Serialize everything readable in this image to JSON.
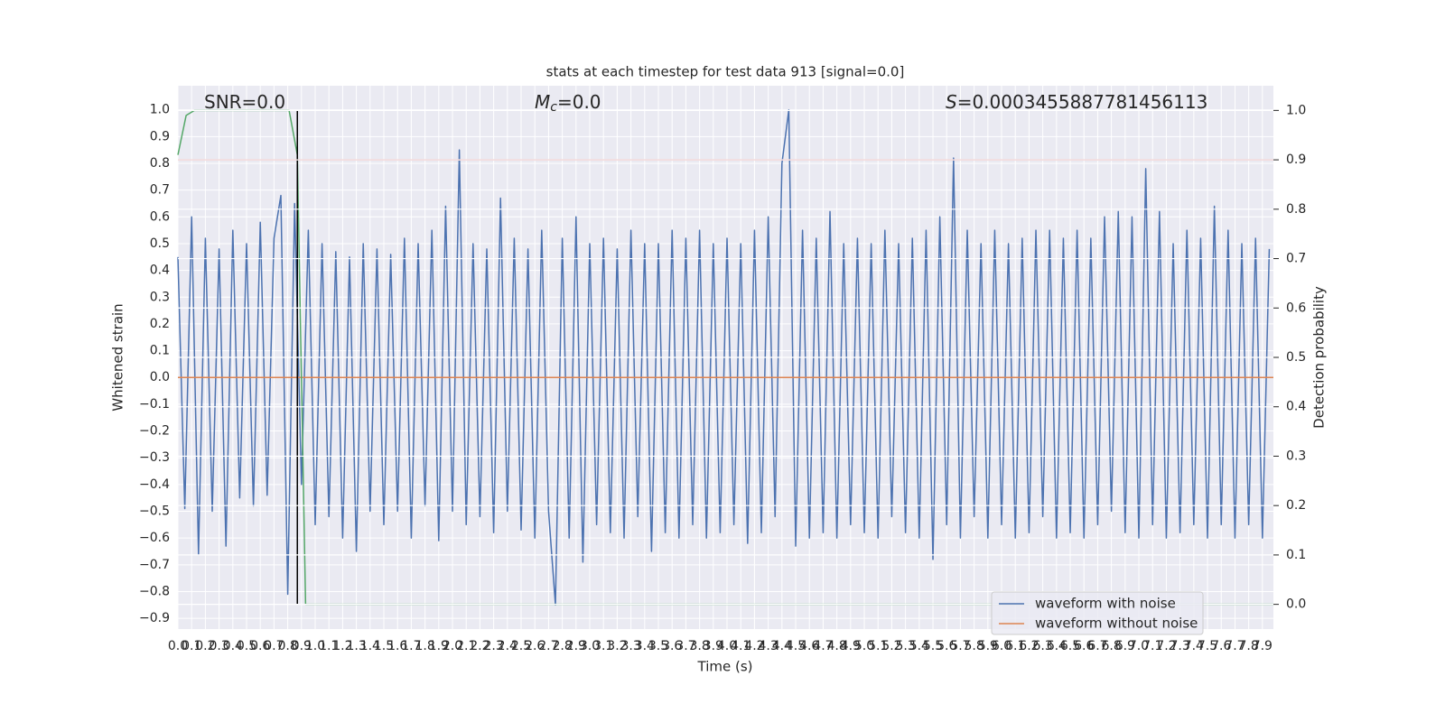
{
  "chart_data": {
    "type": "line",
    "title": "stats at each timestep for test data 913 [signal=0.0]",
    "xlabel": "Time (s)",
    "ylabel": "Whitened strain",
    "y2label": "Detection probability",
    "annotations": [
      {
        "text": "SNR=0.0"
      },
      {
        "italic": "M",
        "sub": "c",
        "text": "=0.0"
      },
      {
        "italic": "S",
        "text": "=0.0003455887781456113"
      }
    ],
    "xlim": [
      0,
      7.98
    ],
    "ylim": [
      -0.94,
      1.09
    ],
    "y2lim": [
      -0.05,
      1.05
    ],
    "grid": true,
    "legend": "lower right",
    "xticks": [
      {
        "value": 0,
        "label": "0.0"
      },
      0.1,
      0.2,
      0.3,
      0.4,
      0.5,
      0.6,
      0.7,
      0.8,
      0.9,
      {
        "value": 1,
        "label": "1.0"
      },
      1.1,
      1.2,
      1.3,
      1.4,
      1.5,
      1.6,
      1.7,
      1.8,
      1.9,
      {
        "value": 2,
        "label": "2.0"
      },
      2.1,
      2.2,
      2.3,
      2.4,
      2.5,
      2.6,
      2.7,
      2.8,
      2.9,
      {
        "value": 3,
        "label": "3.0"
      },
      3.1,
      3.2,
      3.3,
      3.4,
      3.5,
      3.6,
      3.7,
      3.8,
      3.9,
      {
        "value": 4,
        "label": "4.0"
      },
      4.1,
      4.2,
      4.3,
      4.4,
      4.5,
      4.6,
      4.7,
      4.8,
      4.9,
      {
        "value": 5,
        "label": "5.0"
      },
      5.1,
      5.2,
      5.3,
      5.4,
      5.5,
      5.6,
      5.7,
      5.8,
      5.9,
      {
        "value": 6,
        "label": "6.0"
      },
      6.1,
      6.2,
      6.3,
      6.4,
      6.5,
      6.6,
      6.7,
      6.8,
      6.9,
      {
        "value": 7,
        "label": "7.0"
      },
      7.1,
      7.2,
      7.3,
      7.4,
      7.5,
      7.6,
      7.7,
      7.8,
      7.9
    ],
    "yticks": [
      {
        "value": -0.9,
        "label": "−0.9"
      },
      {
        "value": -0.8,
        "label": "−0.8"
      },
      {
        "value": -0.7,
        "label": "−0.7"
      },
      {
        "value": -0.6,
        "label": "−0.6"
      },
      {
        "value": -0.5,
        "label": "−0.5"
      },
      {
        "value": -0.4,
        "label": "−0.4"
      },
      {
        "value": -0.3,
        "label": "−0.3"
      },
      {
        "value": -0.2,
        "label": "−0.2"
      },
      {
        "value": -0.1,
        "label": "−0.1"
      },
      {
        "value": 0,
        "label": "0.0"
      },
      0.1,
      0.2,
      0.3,
      0.4,
      0.5,
      0.6,
      0.7,
      0.8,
      0.9,
      {
        "value": 1,
        "label": "1.0"
      }
    ],
    "y2ticks": [
      {
        "value": 0,
        "label": "0.0"
      },
      0.1,
      0.2,
      0.3,
      0.4,
      0.5,
      0.6,
      0.7,
      0.8,
      0.9,
      {
        "value": 1,
        "label": "1.0"
      }
    ],
    "series": [
      {
        "name": "waveform with noise",
        "color": "#4c72b0",
        "x": [
          0,
          0.05,
          0.1,
          0.15,
          0.2,
          0.25,
          0.3,
          0.35,
          0.4,
          0.45,
          0.5,
          0.55,
          0.6,
          0.65,
          0.7,
          0.75,
          0.8,
          0.85,
          0.9,
          0.95,
          1,
          1.05,
          1.1,
          1.15,
          1.2,
          1.25,
          1.3,
          1.35,
          1.4,
          1.45,
          1.5,
          1.55,
          1.6,
          1.65,
          1.7,
          1.75,
          1.8,
          1.85,
          1.9,
          1.95,
          2,
          2.05,
          2.1,
          2.15,
          2.2,
          2.25,
          2.3,
          2.35,
          2.4,
          2.45,
          2.5,
          2.55,
          2.6,
          2.65,
          2.7,
          2.75,
          2.8,
          2.85,
          2.9,
          2.95,
          3,
          3.05,
          3.1,
          3.15,
          3.2,
          3.25,
          3.3,
          3.35,
          3.4,
          3.45,
          3.5,
          3.55,
          3.6,
          3.65,
          3.7,
          3.75,
          3.8,
          3.85,
          3.9,
          3.95,
          4,
          4.05,
          4.1,
          4.15,
          4.2,
          4.25,
          4.3,
          4.35,
          4.4,
          4.45,
          4.5,
          4.55,
          4.6,
          4.65,
          4.7,
          4.75,
          4.8,
          4.85,
          4.9,
          4.95,
          5,
          5.05,
          5.1,
          5.15,
          5.2,
          5.25,
          5.3,
          5.35,
          5.4,
          5.45,
          5.5,
          5.55,
          5.6,
          5.65,
          5.7,
          5.75,
          5.8,
          5.85,
          5.9,
          5.95,
          6,
          6.05,
          6.1,
          6.15,
          6.2,
          6.25,
          6.3,
          6.35,
          6.4,
          6.45,
          6.5,
          6.55,
          6.6,
          6.65,
          6.7,
          6.75,
          6.8,
          6.85,
          6.9,
          6.95,
          7,
          7.05,
          7.1,
          7.15,
          7.2,
          7.25,
          7.3,
          7.35,
          7.4,
          7.45,
          7.5,
          7.55,
          7.6,
          7.65,
          7.7,
          7.75,
          7.8,
          7.85,
          7.9,
          7.95
        ],
        "values": [
          0.45,
          -0.49,
          0.6,
          -0.66,
          0.52,
          -0.5,
          0.48,
          -0.63,
          0.55,
          -0.45,
          0.5,
          -0.48,
          0.58,
          -0.44,
          0.52,
          0.68,
          -0.81,
          0.65,
          -0.4,
          0.55,
          -0.55,
          0.5,
          -0.52,
          0.47,
          -0.6,
          0.45,
          -0.65,
          0.5,
          -0.5,
          0.48,
          -0.55,
          0.46,
          -0.5,
          0.52,
          -0.6,
          0.5,
          -0.48,
          0.55,
          -0.61,
          0.64,
          -0.5,
          0.85,
          -0.55,
          0.5,
          -0.52,
          0.48,
          -0.58,
          0.67,
          -0.5,
          0.52,
          -0.57,
          0.48,
          -0.6,
          0.55,
          -0.5,
          -0.85,
          0.52,
          -0.6,
          0.6,
          -0.69,
          0.5,
          -0.55,
          0.52,
          -0.58,
          0.48,
          -0.6,
          0.55,
          -0.52,
          0.5,
          -0.65,
          0.5,
          -0.58,
          0.55,
          -0.6,
          0.52,
          -0.55,
          0.55,
          -0.6,
          0.5,
          -0.58,
          0.52,
          -0.55,
          0.5,
          -0.62,
          0.55,
          -0.58,
          0.6,
          -0.52,
          0.8,
          1.0,
          -0.63,
          0.55,
          -0.6,
          0.52,
          -0.58,
          0.62,
          -0.6,
          0.5,
          -0.55,
          0.52,
          -0.58,
          0.5,
          -0.6,
          0.55,
          -0.52,
          0.5,
          -0.58,
          0.52,
          -0.6,
          0.55,
          -0.68,
          0.6,
          -0.55,
          0.82,
          -0.6,
          0.55,
          -0.52,
          0.5,
          -0.6,
          0.55,
          -0.55,
          0.5,
          -0.6,
          0.52,
          -0.58,
          0.55,
          -0.52,
          0.55,
          -0.6,
          0.52,
          -0.58,
          0.55,
          -0.6,
          0.52,
          -0.55,
          0.6,
          -0.5,
          0.62,
          -0.58,
          0.6,
          -0.6,
          0.78,
          -0.55,
          0.62,
          -0.6,
          0.5,
          -0.58,
          0.55,
          -0.55,
          0.52,
          -0.6,
          0.64,
          -0.55,
          0.55,
          -0.6,
          0.5,
          -0.55,
          0.52,
          -0.6,
          0.48
        ]
      },
      {
        "name": "waveform without noise",
        "color": "#dd8452",
        "x": [
          0,
          7.98
        ],
        "values": [
          0,
          0
        ]
      }
    ],
    "probability": {
      "color": "#55a868",
      "axis": "y2",
      "x": [
        0,
        0.06,
        0.12,
        0.81,
        0.87,
        0.93,
        7.98
      ],
      "values": [
        0.91,
        0.99,
        1.0,
        1.0,
        0.91,
        0.0,
        0.0
      ]
    },
    "threshold": {
      "value": 0.9,
      "axis": "y2",
      "color": "#c44e52"
    },
    "vline": {
      "x": 0.87,
      "ymin": 0,
      "ymax": 1,
      "axis": "y2",
      "color": "#000000"
    }
  }
}
